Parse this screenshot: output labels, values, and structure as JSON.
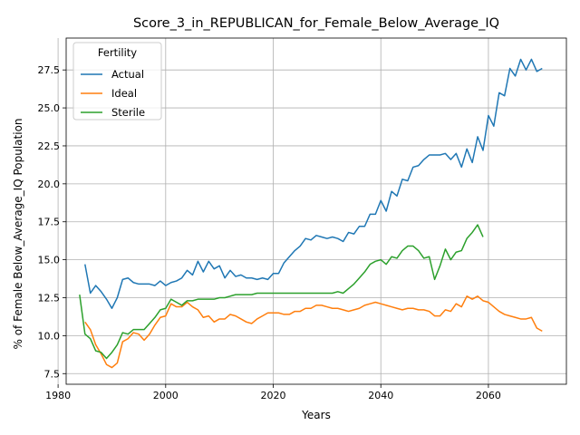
{
  "chart_data": {
    "type": "line",
    "title": "Score_3_in_REPUBLICAN_for_Female_Below_Average_IQ",
    "xlabel": "Years",
    "ylabel": "% of Female Below_Average_IQ Population",
    "xlim": [
      1981.5,
      2074.5
    ],
    "ylim": [
      6.8,
      29.6
    ],
    "xticks": [
      1980,
      2000,
      2020,
      2040,
      2060
    ],
    "yticks": [
      7.5,
      10.0,
      12.5,
      15.0,
      17.5,
      20.0,
      22.5,
      25.0,
      27.5
    ],
    "grid": true,
    "legend": {
      "title": "Fertility",
      "placement": "top-left"
    },
    "series": [
      {
        "name": "Actual",
        "color": "#1f77b4",
        "x": [
          1985,
          1986,
          1987,
          1988,
          1989,
          1990,
          1991,
          1992,
          1993,
          1994,
          1995,
          1996,
          1997,
          1998,
          1999,
          2000,
          2001,
          2002,
          2003,
          2004,
          2005,
          2006,
          2007,
          2008,
          2009,
          2010,
          2011,
          2012,
          2013,
          2014,
          2015,
          2016,
          2017,
          2018,
          2019,
          2020,
          2021,
          2022,
          2023,
          2024,
          2025,
          2026,
          2027,
          2028,
          2029,
          2030,
          2031,
          2032,
          2033,
          2034,
          2035,
          2036,
          2037,
          2038,
          2039,
          2040,
          2041,
          2042,
          2043,
          2044,
          2045,
          2046,
          2047,
          2048,
          2049,
          2050,
          2051,
          2052,
          2053,
          2054,
          2055,
          2056,
          2057,
          2058,
          2059,
          2060,
          2061,
          2062,
          2063,
          2064,
          2065,
          2066,
          2067,
          2068,
          2069,
          2070
        ],
        "values": [
          14.7,
          12.8,
          13.3,
          12.9,
          12.4,
          11.8,
          12.5,
          13.7,
          13.8,
          13.5,
          13.4,
          13.4,
          13.4,
          13.3,
          13.6,
          13.3,
          13.5,
          13.6,
          13.8,
          14.3,
          14.0,
          14.9,
          14.2,
          14.9,
          14.4,
          14.6,
          13.8,
          14.3,
          13.9,
          14.0,
          13.8,
          13.8,
          13.7,
          13.8,
          13.7,
          14.1,
          14.1,
          14.8,
          15.2,
          15.6,
          15.9,
          16.4,
          16.3,
          16.6,
          16.5,
          16.4,
          16.5,
          16.4,
          16.2,
          16.8,
          16.7,
          17.2,
          17.2,
          18.0,
          18.0,
          18.9,
          18.2,
          19.5,
          19.2,
          20.3,
          20.2,
          21.1,
          21.2,
          21.6,
          21.9,
          21.9,
          21.9,
          22.0,
          21.6,
          22.0,
          21.1,
          22.3,
          21.4,
          23.1,
          22.2,
          24.5,
          23.8,
          26.0,
          25.8,
          27.6,
          27.1,
          28.2,
          27.5,
          28.2,
          27.4,
          27.6
        ]
      },
      {
        "name": "Ideal",
        "color": "#ff7f0e",
        "x": [
          1985,
          1986,
          1987,
          1988,
          1989,
          1990,
          1991,
          1992,
          1993,
          1994,
          1995,
          1996,
          1997,
          1998,
          1999,
          2000,
          2001,
          2002,
          2003,
          2004,
          2005,
          2006,
          2007,
          2008,
          2009,
          2010,
          2011,
          2012,
          2013,
          2014,
          2015,
          2016,
          2017,
          2018,
          2019,
          2020,
          2021,
          2022,
          2023,
          2024,
          2025,
          2026,
          2027,
          2028,
          2029,
          2030,
          2031,
          2032,
          2033,
          2034,
          2035,
          2036,
          2037,
          2038,
          2039,
          2040,
          2041,
          2042,
          2043,
          2044,
          2045,
          2046,
          2047,
          2048,
          2049,
          2050,
          2051,
          2052,
          2053,
          2054,
          2055,
          2056,
          2057,
          2058,
          2059,
          2060,
          2061,
          2062,
          2063,
          2064,
          2065,
          2066,
          2067,
          2068,
          2069,
          2070
        ],
        "values": [
          10.9,
          10.4,
          9.4,
          8.8,
          8.1,
          7.9,
          8.2,
          9.6,
          9.8,
          10.2,
          10.1,
          9.7,
          10.1,
          10.7,
          11.2,
          11.3,
          12.1,
          11.9,
          11.9,
          12.2,
          11.9,
          11.7,
          11.2,
          11.3,
          10.9,
          11.1,
          11.1,
          11.4,
          11.3,
          11.1,
          10.9,
          10.8,
          11.1,
          11.3,
          11.5,
          11.5,
          11.5,
          11.4,
          11.4,
          11.6,
          11.6,
          11.8,
          11.8,
          12.0,
          12.0,
          11.9,
          11.8,
          11.8,
          11.7,
          11.6,
          11.7,
          11.8,
          12.0,
          12.1,
          12.2,
          12.1,
          12.0,
          11.9,
          11.8,
          11.7,
          11.8,
          11.8,
          11.7,
          11.7,
          11.6,
          11.3,
          11.3,
          11.7,
          11.6,
          12.1,
          11.9,
          12.6,
          12.4,
          12.6,
          12.3,
          12.2,
          11.9,
          11.6,
          11.4,
          11.3,
          11.2,
          11.1,
          11.1,
          11.2,
          10.5,
          10.3
        ]
      },
      {
        "name": "Sterile",
        "color": "#2ca02c",
        "x": [
          1984,
          1985,
          1986,
          1987,
          1988,
          1989,
          1990,
          1991,
          1992,
          1993,
          1994,
          1995,
          1996,
          1997,
          1998,
          1999,
          2000,
          2001,
          2002,
          2003,
          2004,
          2005,
          2006,
          2007,
          2008,
          2009,
          2010,
          2011,
          2012,
          2013,
          2014,
          2015,
          2016,
          2017,
          2018,
          2019,
          2020,
          2021,
          2022,
          2023,
          2024,
          2025,
          2026,
          2027,
          2028,
          2029,
          2030,
          2031,
          2032,
          2033,
          2034,
          2035,
          2036,
          2037,
          2038,
          2039,
          2040,
          2041,
          2042,
          2043,
          2044,
          2045,
          2046,
          2047,
          2048,
          2049,
          2050,
          2051,
          2052,
          2053,
          2054,
          2055,
          2056,
          2057,
          2058,
          2059
        ],
        "values": [
          12.7,
          10.1,
          9.8,
          9.0,
          8.9,
          8.5,
          8.9,
          9.4,
          10.2,
          10.1,
          10.4,
          10.4,
          10.4,
          10.8,
          11.2,
          11.7,
          11.8,
          12.4,
          12.2,
          12.0,
          12.3,
          12.3,
          12.4,
          12.4,
          12.4,
          12.4,
          12.5,
          12.5,
          12.6,
          12.7,
          12.7,
          12.7,
          12.7,
          12.8,
          12.8,
          12.8,
          12.8,
          12.8,
          12.8,
          12.8,
          12.8,
          12.8,
          12.8,
          12.8,
          12.8,
          12.8,
          12.8,
          12.8,
          12.9,
          12.8,
          13.1,
          13.4,
          13.8,
          14.2,
          14.7,
          14.9,
          15.0,
          14.7,
          15.2,
          15.1,
          15.6,
          15.9,
          15.9,
          15.6,
          15.1,
          15.2,
          13.7,
          14.6,
          15.7,
          15.0,
          15.5,
          15.6,
          16.4,
          16.8,
          17.3,
          16.5
        ]
      }
    ]
  }
}
